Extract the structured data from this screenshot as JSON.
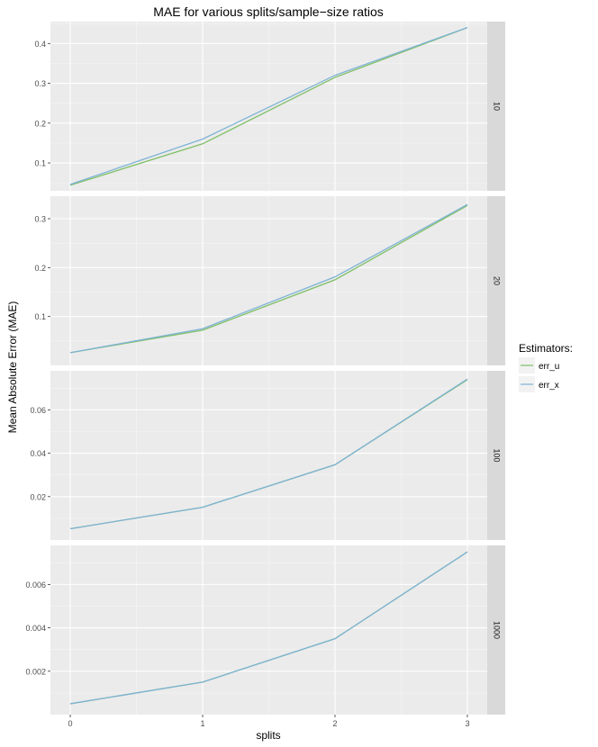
{
  "title": "MAE for various splits/sample−size ratios",
  "xlabel": "splits",
  "ylabel": "Mean Absolute Error (MAE)",
  "legend": {
    "title": "Estimators:",
    "items": [
      {
        "name": "err_u",
        "color": "#7fbf66"
      },
      {
        "name": "err_x",
        "color": "#7eb3d6"
      }
    ]
  },
  "chart_data": {
    "type": "line",
    "title": "MAE for various splits/sample−size ratios",
    "xlabel": "splits",
    "ylabel": "Mean Absolute Error (MAE)",
    "x": [
      0,
      1,
      2,
      3
    ],
    "x_ticks": [
      "0",
      "1",
      "2",
      "3"
    ],
    "xlim": [
      -0.15,
      3.15
    ],
    "grid": true,
    "legend_position": "right",
    "facet_layout": "rows",
    "panels": [
      {
        "strip": "10",
        "ylim": [
          0.03,
          0.455
        ],
        "y_ticks": [
          0.1,
          0.2,
          0.3,
          0.4
        ],
        "y_tick_labels": [
          "0.1",
          "0.2",
          "0.3",
          "0.4"
        ],
        "series": [
          {
            "name": "err_u",
            "values": [
              0.044,
              0.148,
              0.315,
              0.44
            ]
          },
          {
            "name": "err_x",
            "values": [
              0.046,
              0.16,
              0.32,
              0.44
            ]
          }
        ]
      },
      {
        "strip": "20",
        "ylim": [
          0.0,
          0.346
        ],
        "y_ticks": [
          0.1,
          0.2,
          0.3
        ],
        "y_tick_labels": [
          "0.1",
          "0.2",
          "0.3"
        ],
        "series": [
          {
            "name": "err_u",
            "values": [
              0.026,
              0.072,
              0.175,
              0.327
            ]
          },
          {
            "name": "err_x",
            "values": [
              0.026,
              0.075,
              0.181,
              0.329
            ]
          }
        ]
      },
      {
        "strip": "100",
        "ylim": [
          0.0,
          0.078
        ],
        "y_ticks": [
          0.02,
          0.04,
          0.06
        ],
        "y_tick_labels": [
          "0.02",
          "0.04",
          "0.06"
        ],
        "series": [
          {
            "name": "err_u",
            "values": [
              0.0052,
              0.0151,
              0.0347,
              0.0739
            ]
          },
          {
            "name": "err_x",
            "values": [
              0.0052,
              0.0151,
              0.0347,
              0.0742
            ]
          }
        ]
      },
      {
        "strip": "1000",
        "ylim": [
          0.0,
          0.0078
        ],
        "y_ticks": [
          0.002,
          0.004,
          0.006
        ],
        "y_tick_labels": [
          "0.002",
          "0.004",
          "0.006"
        ],
        "series": [
          {
            "name": "err_u",
            "values": [
              0.0005,
              0.0015,
              0.0035,
              0.0075
            ]
          },
          {
            "name": "err_x",
            "values": [
              0.0005,
              0.0015,
              0.0035,
              0.0075
            ]
          }
        ]
      }
    ]
  }
}
